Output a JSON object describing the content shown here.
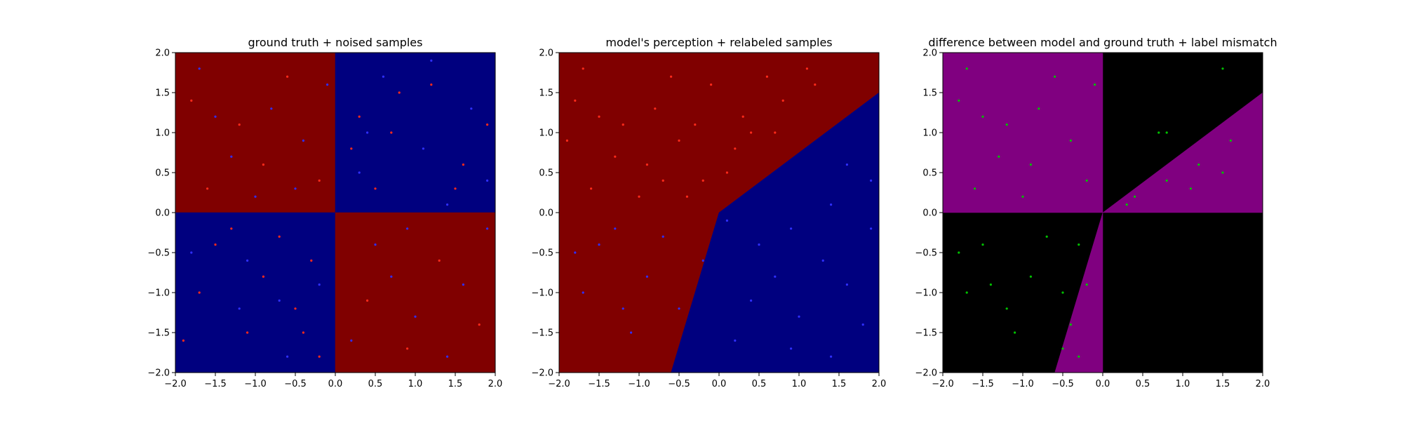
{
  "chart_data": [
    {
      "type": "scatter",
      "title": "ground truth + noised samples",
      "xlim": [
        -2.0,
        2.0
      ],
      "ylim": [
        -2.0,
        2.0
      ],
      "x_ticks": [
        "−2.0",
        "−1.5",
        "−1.0",
        "−0.5",
        "0.0",
        "0.5",
        "1.0",
        "1.5",
        "2.0"
      ],
      "y_ticks": [
        "−2.0",
        "−1.5",
        "−1.0",
        "−0.5",
        "0.0",
        "0.5",
        "1.0",
        "1.5",
        "2.0"
      ],
      "background_regions": [
        {
          "polygon": [
            [
              -2,
              0
            ],
            [
              0,
              0
            ],
            [
              0,
              2
            ],
            [
              -2,
              2
            ]
          ],
          "color": "#800000"
        },
        {
          "polygon": [
            [
              0,
              0
            ],
            [
              2,
              0
            ],
            [
              2,
              2
            ],
            [
              0,
              2
            ]
          ],
          "color": "#00007f"
        },
        {
          "polygon": [
            [
              -2,
              -2
            ],
            [
              0,
              -2
            ],
            [
              0,
              0
            ],
            [
              -2,
              0
            ]
          ],
          "color": "#00007f"
        },
        {
          "polygon": [
            [
              0,
              -2
            ],
            [
              2,
              -2
            ],
            [
              2,
              0
            ],
            [
              0,
              0
            ]
          ],
          "color": "#800000"
        }
      ],
      "series": [
        {
          "color": "#ff2a1a",
          "points": [
            [
              -1.8,
              1.4
            ],
            [
              -1.2,
              1.1
            ],
            [
              -0.6,
              1.7
            ],
            [
              -0.2,
              0.4
            ],
            [
              -1.6,
              0.3
            ],
            [
              -0.9,
              0.6
            ],
            [
              0.3,
              1.2
            ],
            [
              0.7,
              1.0
            ],
            [
              1.2,
              1.6
            ],
            [
              1.6,
              0.6
            ],
            [
              0.5,
              0.3
            ],
            [
              1.9,
              1.1
            ],
            [
              -1.5,
              -0.4
            ],
            [
              -0.9,
              -0.8
            ],
            [
              -0.5,
              -1.2
            ],
            [
              -0.3,
              -0.6
            ],
            [
              -1.1,
              -1.5
            ],
            [
              -1.7,
              -1.0
            ],
            [
              -0.2,
              -1.8
            ],
            [
              -0.7,
              -0.3
            ],
            [
              0.4,
              -1.1
            ],
            [
              1.3,
              -0.6
            ],
            [
              1.8,
              -1.4
            ],
            [
              0.9,
              -1.7
            ],
            [
              -1.3,
              -0.2
            ],
            [
              -0.4,
              -1.5
            ],
            [
              0.2,
              0.8
            ],
            [
              0.8,
              1.5
            ],
            [
              1.5,
              0.3
            ],
            [
              -1.9,
              -1.6
            ]
          ]
        },
        {
          "color": "#2f2fff",
          "points": [
            [
              -1.7,
              1.8
            ],
            [
              -1.3,
              0.7
            ],
            [
              -0.8,
              1.3
            ],
            [
              -0.4,
              0.9
            ],
            [
              -1.0,
              0.2
            ],
            [
              -0.1,
              1.6
            ],
            [
              0.6,
              1.7
            ],
            [
              1.1,
              0.8
            ],
            [
              1.7,
              1.3
            ],
            [
              0.3,
              0.5
            ],
            [
              1.4,
              0.1
            ],
            [
              1.9,
              0.4
            ],
            [
              -1.8,
              -0.5
            ],
            [
              -1.2,
              -1.2
            ],
            [
              -0.6,
              -1.8
            ],
            [
              -0.2,
              -0.9
            ],
            [
              0.5,
              -0.4
            ],
            [
              1.0,
              -1.3
            ],
            [
              1.6,
              -0.9
            ],
            [
              0.2,
              -1.6
            ],
            [
              1.9,
              -0.2
            ],
            [
              0.7,
              -0.8
            ],
            [
              -1.5,
              1.2
            ],
            [
              -0.5,
              0.3
            ],
            [
              1.2,
              1.9
            ],
            [
              0.4,
              1.0
            ],
            [
              -1.1,
              -0.6
            ],
            [
              -0.7,
              -1.1
            ],
            [
              1.4,
              -1.8
            ],
            [
              0.9,
              -0.2
            ]
          ]
        }
      ]
    },
    {
      "type": "scatter",
      "title": "model's perception + relabeled samples",
      "xlim": [
        -2.0,
        2.0
      ],
      "ylim": [
        -2.0,
        2.0
      ],
      "x_ticks": [
        "−2.0",
        "−1.5",
        "−1.0",
        "−0.5",
        "0.0",
        "0.5",
        "1.0",
        "1.5",
        "2.0"
      ],
      "y_ticks": [
        "−2.0",
        "−1.5",
        "−1.0",
        "−0.5",
        "0.0",
        "0.5",
        "1.0",
        "1.5",
        "2.0"
      ],
      "background_regions": [
        {
          "polygon": [
            [
              -2,
              -2
            ],
            [
              -0.6,
              -2
            ],
            [
              0,
              0
            ],
            [
              2,
              1.5
            ],
            [
              2,
              2
            ],
            [
              -2,
              2
            ]
          ],
          "color": "#800000"
        },
        {
          "polygon": [
            [
              -0.6,
              -2
            ],
            [
              2,
              -2
            ],
            [
              2,
              1.5
            ],
            [
              0,
              0
            ]
          ],
          "color": "#00007f"
        }
      ],
      "series": [
        {
          "color": "#ff2a1a",
          "points": [
            [
              -1.8,
              1.4
            ],
            [
              -1.2,
              1.1
            ],
            [
              -0.6,
              1.7
            ],
            [
              -0.2,
              0.4
            ],
            [
              -1.6,
              0.3
            ],
            [
              -0.9,
              0.6
            ],
            [
              0.3,
              1.2
            ],
            [
              0.7,
              1.0
            ],
            [
              1.2,
              1.6
            ],
            [
              -0.5,
              0.9
            ],
            [
              0.2,
              0.8
            ],
            [
              -1.3,
              0.7
            ],
            [
              -0.8,
              1.3
            ],
            [
              -0.4,
              0.2
            ],
            [
              -1.0,
              0.2
            ],
            [
              -0.1,
              1.6
            ],
            [
              0.6,
              1.7
            ],
            [
              -1.5,
              1.2
            ],
            [
              0.4,
              1.0
            ],
            [
              1.1,
              1.8
            ],
            [
              -1.7,
              1.8
            ],
            [
              -0.3,
              1.1
            ],
            [
              0.1,
              0.5
            ],
            [
              -0.7,
              0.4
            ],
            [
              0.8,
              1.4
            ],
            [
              -1.9,
              0.9
            ]
          ]
        },
        {
          "color": "#2f2fff",
          "points": [
            [
              -1.5,
              -0.4
            ],
            [
              -0.9,
              -0.8
            ],
            [
              -0.5,
              -1.2
            ],
            [
              -1.1,
              -1.5
            ],
            [
              -1.7,
              -1.0
            ],
            [
              -0.7,
              -0.3
            ],
            [
              -1.3,
              -0.2
            ],
            [
              -1.8,
              -0.5
            ],
            [
              -1.2,
              -1.2
            ],
            [
              -0.2,
              -0.6
            ],
            [
              0.4,
              -1.1
            ],
            [
              1.3,
              -0.6
            ],
            [
              1.8,
              -1.4
            ],
            [
              0.9,
              -1.7
            ],
            [
              0.5,
              -0.4
            ],
            [
              1.0,
              -1.3
            ],
            [
              1.6,
              -0.9
            ],
            [
              0.2,
              -1.6
            ],
            [
              1.9,
              -0.2
            ],
            [
              0.7,
              -0.8
            ],
            [
              1.4,
              0.1
            ],
            [
              1.9,
              0.4
            ],
            [
              1.6,
              0.6
            ],
            [
              0.9,
              -0.2
            ],
            [
              1.4,
              -1.8
            ],
            [
              0.1,
              -0.1
            ]
          ]
        }
      ]
    },
    {
      "type": "scatter",
      "title": "difference between model and ground truth + label mismatch",
      "xlim": [
        -2.0,
        2.0
      ],
      "ylim": [
        -2.0,
        2.0
      ],
      "x_ticks": [
        "−2.0",
        "−1.5",
        "−1.0",
        "−0.5",
        "0.0",
        "0.5",
        "1.0",
        "1.5",
        "2.0"
      ],
      "y_ticks": [
        "−2.0",
        "−1.5",
        "−1.0",
        "−0.5",
        "0.0",
        "0.5",
        "1.0",
        "1.5",
        "2.0"
      ],
      "background_regions": [
        {
          "polygon": [
            [
              -2,
              -2
            ],
            [
              2,
              -2
            ],
            [
              2,
              2
            ],
            [
              -2,
              2
            ]
          ],
          "color": "#000000"
        },
        {
          "polygon": [
            [
              -2,
              0
            ],
            [
              0,
              0
            ],
            [
              0,
              2
            ],
            [
              -2,
              2
            ]
          ],
          "color": "#800080"
        },
        {
          "polygon": [
            [
              0,
              0
            ],
            [
              2,
              0
            ],
            [
              2,
              1.5
            ]
          ],
          "color": "#800080"
        },
        {
          "polygon": [
            [
              -0.6,
              -2
            ],
            [
              0,
              -2
            ],
            [
              0,
              0
            ]
          ],
          "color": "#800080"
        }
      ],
      "series": [
        {
          "color": "#00c000",
          "points": [
            [
              -1.8,
              1.4
            ],
            [
              -1.2,
              1.1
            ],
            [
              -0.6,
              1.7
            ],
            [
              -0.2,
              0.4
            ],
            [
              -1.6,
              0.3
            ],
            [
              -0.9,
              0.6
            ],
            [
              -1.3,
              0.7
            ],
            [
              -0.8,
              1.3
            ],
            [
              -0.4,
              0.9
            ],
            [
              -1.0,
              0.2
            ],
            [
              -0.1,
              1.6
            ],
            [
              -1.5,
              1.2
            ],
            [
              -1.7,
              1.8
            ],
            [
              0.4,
              0.2
            ],
            [
              0.8,
              0.4
            ],
            [
              1.2,
              0.6
            ],
            [
              1.6,
              0.9
            ],
            [
              1.1,
              0.3
            ],
            [
              1.5,
              0.5
            ],
            [
              0.3,
              0.1
            ],
            [
              0.8,
              1.0
            ],
            [
              1.5,
              1.8
            ],
            [
              0.7,
              1.0
            ],
            [
              -1.5,
              -0.4
            ],
            [
              -0.9,
              -0.8
            ],
            [
              -1.1,
              -1.5
            ],
            [
              -1.7,
              -1.0
            ],
            [
              -0.7,
              -0.3
            ],
            [
              -1.2,
              -1.2
            ],
            [
              -0.5,
              -1.0
            ],
            [
              -1.8,
              -0.5
            ],
            [
              -0.3,
              -0.4
            ],
            [
              -0.4,
              -1.4
            ],
            [
              -0.3,
              -1.8
            ],
            [
              -0.2,
              -0.9
            ],
            [
              -0.5,
              -1.7
            ],
            [
              -1.4,
              -0.9
            ]
          ]
        }
      ]
    }
  ]
}
